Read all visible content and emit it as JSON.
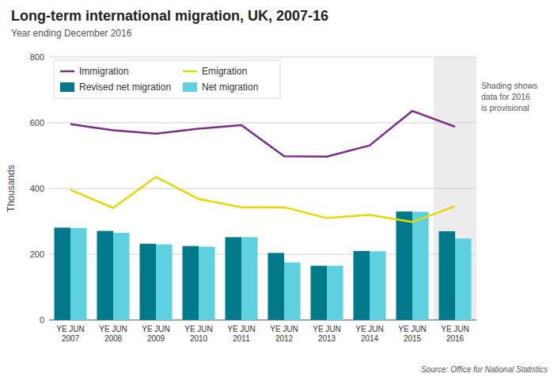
{
  "chart_data": {
    "type": "bar",
    "title": "Long-term international migration, UK, 2007-16",
    "subtitle": "Year ending December 2016",
    "source": "Source: Office for National Statistics",
    "annotation": "Shading shows\ndata for 2016\nis provisional",
    "y_label": "Thousands",
    "categories": [
      "YE JUN\n2007",
      "YE JUN\n2008",
      "YE JUN\n2009",
      "YE JUN\n2010",
      "YE JUN\n2011",
      "YE JUN\n2012",
      "YE JUN\n2013",
      "YE JUN\n2014",
      "YE JUN\n2015",
      "YE JUN\n2016"
    ],
    "series": [
      {
        "name": "Immigration",
        "type": "line",
        "color": "#7b2d8b",
        "values": [
          596,
          577,
          567,
          582,
          593,
          498,
          497,
          531,
          636,
          588
        ]
      },
      {
        "name": "Emigration",
        "type": "line",
        "color": "#e8d800",
        "values": [
          396,
          341,
          435,
          368,
          343,
          343,
          310,
          320,
          298,
          346
        ]
      },
      {
        "name": "Revised net migration",
        "type": "bar",
        "color": "#007a8a",
        "values": [
          281,
          271,
          232,
          225,
          252,
          204,
          165,
          210,
          330,
          270
        ]
      },
      {
        "name": "Net migration",
        "type": "bar",
        "color": "#5fd0e0",
        "values": [
          280,
          265,
          230,
          223,
          252,
          175,
          165,
          209,
          329,
          248
        ]
      }
    ],
    "ylim": [
      0,
      800
    ],
    "yticks": [
      0,
      200,
      400,
      600,
      800
    ],
    "grid": true,
    "legend": "upper left"
  }
}
